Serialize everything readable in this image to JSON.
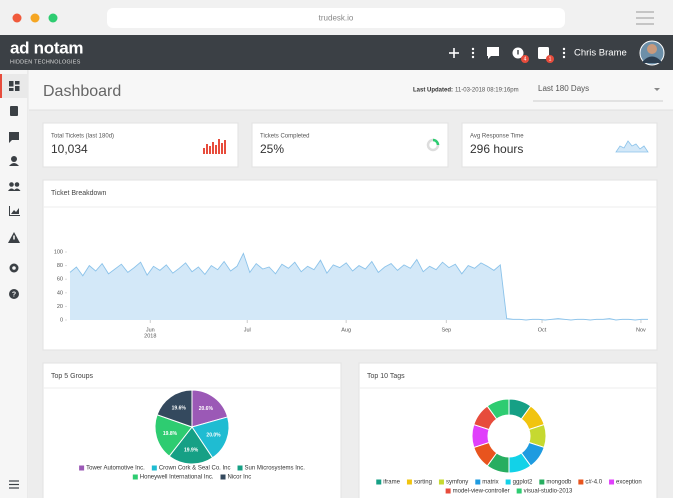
{
  "browser": {
    "url": "trudesk.io"
  },
  "header": {
    "logo": "ad notam",
    "logo_sub": "HIDDEN TECHNOLOGIES",
    "notifications_badge": 4,
    "tickets_badge": 1,
    "user_name": "Chris Brame"
  },
  "page": {
    "title": "Dashboard",
    "last_updated_label": "Last Updated:",
    "last_updated": "11-03-2018 08:19:16pm",
    "range_select": "Last 180 Days"
  },
  "stats": [
    {
      "label": "Total Tickets (last 180d)",
      "value": "10,034"
    },
    {
      "label": "Tickets Completed",
      "value": "25%"
    },
    {
      "label": "Avg Response Time",
      "value": "296 hours"
    }
  ],
  "chart_data": [
    {
      "type": "area",
      "title": "Ticket Breakdown",
      "color": "#8cc3ea",
      "fill": "#d3e8f8",
      "values": [
        70,
        78,
        65,
        80,
        72,
        83,
        68,
        75,
        82,
        70,
        77,
        85,
        66,
        79,
        73,
        81,
        69,
        76,
        84,
        71,
        78,
        67,
        80,
        74,
        86,
        72,
        79,
        98,
        70,
        83,
        75,
        78,
        68,
        82,
        76,
        85,
        71,
        79,
        74,
        88,
        69,
        81,
        77,
        84,
        72,
        80,
        75,
        86,
        70,
        78,
        83,
        73,
        81,
        76,
        89,
        71,
        79,
        74,
        85,
        77,
        82,
        68,
        80,
        76,
        84,
        79,
        73,
        81,
        2,
        1,
        1,
        0,
        1,
        1,
        0,
        1,
        2,
        1,
        0,
        1,
        1,
        0,
        1,
        1,
        2,
        0,
        1,
        1,
        0,
        1,
        1
      ],
      "xlim": [
        0,
        90
      ],
      "xticks": [
        {
          "value": 12.5,
          "label": "Jun"
        },
        {
          "value": 27.6,
          "label": "Jul"
        },
        {
          "value": 43,
          "label": "Aug"
        },
        {
          "value": 58.6,
          "label": "Sep"
        },
        {
          "value": 73.5,
          "label": "Oct"
        },
        {
          "value": 88.9,
          "label": "Nov"
        }
      ],
      "xtick_sublabel": "2018",
      "ylim": [
        0,
        100
      ],
      "yticks": [
        0,
        20,
        40,
        60,
        80,
        100
      ]
    },
    {
      "type": "pie",
      "title": "Top 5 Groups",
      "categories": [
        "Tower Automotive Inc.",
        "Crown Cork & Seal Co. Inc",
        "Sun Microsystems Inc.",
        "Honeywell International Inc.",
        "Nicor Inc"
      ],
      "values": [
        20.6,
        20.0,
        19.9,
        19.8,
        19.6
      ],
      "value_labels": [
        "20.6%",
        "20.0%",
        "19.9%",
        "19.8%",
        "19.6%"
      ],
      "colors": [
        "#9b59b6",
        "#1fbcd2",
        "#16a085",
        "#2ecc71",
        "#34495e"
      ]
    },
    {
      "type": "donut",
      "title": "Top 10 Tags",
      "categories": [
        "iframe",
        "sorting",
        "symfony",
        "matrix",
        "ggplot2",
        "mongodb",
        "c#-4.0",
        "exception",
        "model-view-controller",
        "visual-studio-2013"
      ],
      "values": [
        10,
        10,
        10,
        10,
        10,
        10,
        10,
        10,
        10,
        10
      ],
      "colors": [
        "#16a085",
        "#f1c40f",
        "#c6d930",
        "#1e9be0",
        "#12d2e8",
        "#27ae60",
        "#e8541e",
        "#e040fb",
        "#e74c3c",
        "#2ecc71"
      ]
    }
  ]
}
